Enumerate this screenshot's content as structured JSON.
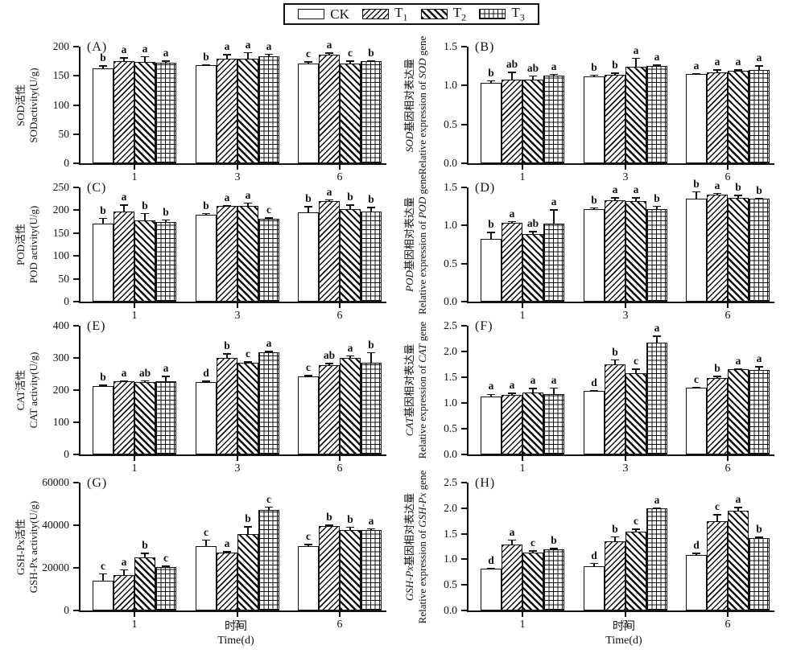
{
  "figure": {
    "legend": {
      "items": [
        {
          "label": "CK",
          "sub": "",
          "pattern": "plain"
        },
        {
          "label": "T",
          "sub": "1",
          "pattern": "hatch-fwd"
        },
        {
          "label": "T",
          "sub": "2",
          "pattern": "hatch-back"
        },
        {
          "label": "T",
          "sub": "3",
          "pattern": "grid"
        }
      ]
    },
    "xaxis": {
      "label_zh": "时间",
      "label_en": "Time(d)"
    },
    "colors": {
      "ink": "#111111",
      "background": "#ffffff"
    }
  },
  "chart_data": [
    {
      "id": "A",
      "tag": "(A)",
      "type": "bar",
      "ylabel_zh": "SOD活性",
      "ylabel_en": "SODactivity(U/g)",
      "italic_term": null,
      "ylim": [
        0,
        200
      ],
      "yticks": [
        0,
        50,
        100,
        150,
        200
      ],
      "ytick_decimals": 0,
      "categories": [
        "1",
        "3",
        "6"
      ],
      "series": [
        {
          "name": "CK",
          "values": [
            163,
            168,
            171
          ],
          "errors": [
            5,
            2,
            4
          ],
          "letters": [
            "b",
            "b",
            "c"
          ]
        },
        {
          "name": "T1",
          "values": [
            175,
            179,
            186
          ],
          "errors": [
            7,
            8,
            4
          ],
          "letters": [
            "a",
            "a",
            "a"
          ]
        },
        {
          "name": "T2",
          "values": [
            174,
            180,
            171
          ],
          "errors": [
            10,
            11,
            5
          ],
          "letters": [
            "a",
            "a",
            "c"
          ]
        },
        {
          "name": "T3",
          "values": [
            173,
            183,
            175
          ],
          "errors": [
            3,
            5,
            2
          ],
          "letters": [
            "a",
            "a",
            "b"
          ]
        }
      ]
    },
    {
      "id": "B",
      "tag": "(B)",
      "type": "bar",
      "ylabel_zh": "SOD基因相对表达量",
      "ylabel_en": "Relative expression of SOD gene",
      "italic_term": "SOD",
      "ylim": [
        0,
        1.5
      ],
      "yticks": [
        0,
        0.5,
        1.0,
        1.5
      ],
      "ytick_decimals": 1,
      "categories": [
        "1",
        "3",
        "6"
      ],
      "series": [
        {
          "name": "CK",
          "values": [
            1.03,
            1.12,
            1.15
          ],
          "errors": [
            0.04,
            0.02,
            0.01
          ],
          "letters": [
            "b",
            "b",
            "a"
          ]
        },
        {
          "name": "T1",
          "values": [
            1.08,
            1.14,
            1.17
          ],
          "errors": [
            0.1,
            0.03,
            0.04
          ],
          "letters": [
            "ab",
            "b",
            "a"
          ]
        },
        {
          "name": "T2",
          "values": [
            1.08,
            1.24,
            1.19
          ],
          "errors": [
            0.05,
            0.12,
            0.02
          ],
          "letters": [
            "ab",
            "a",
            "a"
          ]
        },
        {
          "name": "T3",
          "values": [
            1.13,
            1.25,
            1.2
          ],
          "errors": [
            0.02,
            0.02,
            0.06
          ],
          "letters": [
            "a",
            "a",
            "a"
          ]
        }
      ]
    },
    {
      "id": "C",
      "tag": "(C)",
      "type": "bar",
      "ylabel_zh": "POD活性",
      "ylabel_en": "POD activity(U/g)",
      "italic_term": null,
      "ylim": [
        0,
        250
      ],
      "yticks": [
        0,
        50,
        100,
        150,
        200,
        250
      ],
      "ytick_decimals": 0,
      "categories": [
        "1",
        "3",
        "6"
      ],
      "series": [
        {
          "name": "CK",
          "values": [
            170,
            190,
            195
          ],
          "errors": [
            14,
            4,
            14
          ],
          "letters": [
            "b",
            "b",
            "b"
          ]
        },
        {
          "name": "T1",
          "values": [
            198,
            209,
            220
          ],
          "errors": [
            15,
            3,
            4
          ],
          "letters": [
            "a",
            "a",
            "a"
          ]
        },
        {
          "name": "T2",
          "values": [
            177,
            210,
            203
          ],
          "errors": [
            17,
            7,
            10
          ],
          "letters": [
            "b",
            "a",
            "b"
          ]
        },
        {
          "name": "T3",
          "values": [
            174,
            182,
            197
          ],
          "errors": [
            6,
            3,
            10
          ],
          "letters": [
            "b",
            "c",
            "b"
          ]
        }
      ]
    },
    {
      "id": "D",
      "tag": "(D)",
      "type": "bar",
      "ylabel_zh": "POD基因相对表达量",
      "ylabel_en": "Relative expression of POD gene",
      "italic_term": "POD",
      "ylim": [
        0,
        1.5
      ],
      "yticks": [
        0,
        0.5,
        1.0,
        1.5
      ],
      "ytick_decimals": 1,
      "categories": [
        "1",
        "3",
        "6"
      ],
      "series": [
        {
          "name": "CK",
          "values": [
            0.82,
            1.21,
            1.35
          ],
          "errors": [
            0.1,
            0.03,
            0.1
          ],
          "letters": [
            "b",
            "b",
            "b"
          ]
        },
        {
          "name": "T1",
          "values": [
            1.04,
            1.33,
            1.41
          ],
          "errors": [
            0.02,
            0.04,
            0.02
          ],
          "letters": [
            "a",
            "a",
            "a"
          ]
        },
        {
          "name": "T2",
          "values": [
            0.89,
            1.32,
            1.36
          ],
          "errors": [
            0.04,
            0.05,
            0.04
          ],
          "letters": [
            "ab",
            "a",
            "b"
          ]
        },
        {
          "name": "T3",
          "values": [
            1.03,
            1.22,
            1.35
          ],
          "errors": [
            0.18,
            0.04,
            0.01
          ],
          "letters": [
            "a",
            "b",
            "b"
          ]
        }
      ]
    },
    {
      "id": "E",
      "tag": "(E)",
      "type": "bar",
      "ylabel_zh": "CAT活性",
      "ylabel_en": "CAT activity(U/g)",
      "italic_term": null,
      "ylim": [
        0,
        400
      ],
      "yticks": [
        0,
        100,
        200,
        300,
        400
      ],
      "ytick_decimals": 0,
      "categories": [
        "1",
        "3",
        "6"
      ],
      "series": [
        {
          "name": "CK",
          "values": [
            213,
            225,
            242
          ],
          "errors": [
            4,
            5,
            5
          ],
          "letters": [
            "b",
            "d",
            "c"
          ]
        },
        {
          "name": "T1",
          "values": [
            228,
            300,
            277
          ],
          "errors": [
            3,
            14,
            7
          ],
          "letters": [
            "a",
            "b",
            "ab"
          ]
        },
        {
          "name": "T2",
          "values": [
            226,
            285,
            300
          ],
          "errors": [
            5,
            4,
            8
          ],
          "letters": [
            "ab",
            "c",
            "a"
          ]
        },
        {
          "name": "T3",
          "values": [
            228,
            318,
            286
          ],
          "errors": [
            17,
            4,
            32
          ],
          "letters": [
            "a",
            "a",
            "b"
          ]
        }
      ]
    },
    {
      "id": "F",
      "tag": "(F)",
      "type": "bar",
      "ylabel_zh": "CAT基因相对表达量",
      "ylabel_en": "Relative expression of CAT gene",
      "italic_term": "CAT",
      "ylim": [
        0,
        2.5
      ],
      "yticks": [
        0,
        0.5,
        1.0,
        1.5,
        2.0,
        2.5
      ],
      "ytick_decimals": 1,
      "categories": [
        "1",
        "3",
        "6"
      ],
      "series": [
        {
          "name": "CK",
          "values": [
            1.13,
            1.23,
            1.29
          ],
          "errors": [
            0.05,
            0.02,
            0.02
          ],
          "letters": [
            "a",
            "d",
            "c"
          ]
        },
        {
          "name": "T1",
          "values": [
            1.15,
            1.75,
            1.49
          ],
          "errors": [
            0.05,
            0.1,
            0.04
          ],
          "letters": [
            "a",
            "b",
            "b"
          ]
        },
        {
          "name": "T2",
          "values": [
            1.2,
            1.58,
            1.65
          ],
          "errors": [
            0.09,
            0.09,
            0.02
          ],
          "letters": [
            "a",
            "c",
            "a"
          ]
        },
        {
          "name": "T3",
          "values": [
            1.17,
            2.17,
            1.64
          ],
          "errors": [
            0.13,
            0.14,
            0.08
          ],
          "letters": [
            "a",
            "a",
            "a"
          ]
        }
      ]
    },
    {
      "id": "G",
      "tag": "(G)",
      "type": "bar",
      "ylabel_zh": "GSH-Px活性",
      "ylabel_en": "GSH-Px activity(U/g)",
      "italic_term": null,
      "ylim": [
        0,
        60000
      ],
      "yticks": [
        0,
        20000,
        40000,
        60000
      ],
      "ytick_decimals": 0,
      "categories": [
        "1",
        "3",
        "6"
      ],
      "series": [
        {
          "name": "CK",
          "values": [
            14000,
            30300,
            30200
          ],
          "errors": [
            3500,
            3000,
            1000
          ],
          "letters": [
            "c",
            "c",
            "c"
          ]
        },
        {
          "name": "T1",
          "values": [
            16500,
            27300,
            39700
          ],
          "errors": [
            2800,
            500,
            600
          ],
          "letters": [
            "a",
            "a",
            "b"
          ]
        },
        {
          "name": "T2",
          "values": [
            25000,
            36000,
            37800
          ],
          "errors": [
            2200,
            3500,
            1500
          ],
          "letters": [
            "b",
            "b",
            "b"
          ]
        },
        {
          "name": "T3",
          "values": [
            20300,
            47000,
            37800
          ],
          "errors": [
            700,
            1800,
            800
          ],
          "letters": [
            "c",
            "c",
            "a"
          ]
        }
      ]
    },
    {
      "id": "H",
      "tag": "(H)",
      "type": "bar",
      "ylabel_zh": "GSH-Px基因相对表达量",
      "ylabel_en": "Relative expression of GSH-Px gene",
      "italic_term": "GSH-Px",
      "ylim": [
        0,
        2.5
      ],
      "yticks": [
        0,
        0.5,
        1.0,
        1.5,
        2.0,
        2.5
      ],
      "ytick_decimals": 1,
      "categories": [
        "1",
        "3",
        "6"
      ],
      "series": [
        {
          "name": "CK",
          "values": [
            0.81,
            0.86,
            1.09
          ],
          "errors": [
            0.02,
            0.07,
            0.04
          ],
          "letters": [
            "d",
            "d",
            "d"
          ]
        },
        {
          "name": "T1",
          "values": [
            1.29,
            1.35,
            1.75
          ],
          "errors": [
            0.1,
            0.1,
            0.13
          ],
          "letters": [
            "a",
            "b",
            "c"
          ]
        },
        {
          "name": "T2",
          "values": [
            1.14,
            1.54,
            1.95
          ],
          "errors": [
            0.04,
            0.06,
            0.08
          ],
          "letters": [
            "c",
            "c",
            "a"
          ]
        },
        {
          "name": "T3",
          "values": [
            1.2,
            1.99,
            1.42
          ],
          "errors": [
            0.02,
            0.03,
            0.02
          ],
          "letters": [
            "b",
            "a",
            "b"
          ]
        }
      ]
    }
  ]
}
